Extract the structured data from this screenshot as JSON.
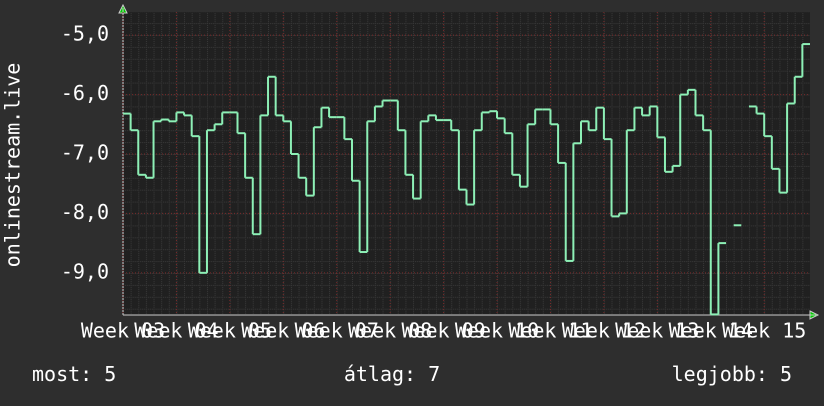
{
  "chart_data": {
    "type": "line",
    "y_label": "onlinestream.live",
    "color": "#8df0b6",
    "x": [
      0,
      1,
      2,
      3,
      4,
      5,
      6,
      7,
      8,
      9,
      10,
      11,
      12,
      13,
      14,
      15,
      16,
      17,
      18,
      19,
      20,
      21,
      22,
      23,
      24,
      25,
      26,
      27,
      28,
      29,
      30,
      31,
      32,
      33,
      34,
      35,
      36,
      37,
      38,
      39,
      40,
      41,
      42,
      43,
      44,
      45,
      46,
      47,
      48,
      49,
      50,
      51,
      52,
      53,
      54,
      55,
      56,
      57,
      58,
      59,
      60,
      61,
      62,
      63,
      64,
      65,
      66,
      67,
      68,
      69,
      70,
      71,
      72,
      73,
      74,
      75,
      76,
      77,
      78,
      79,
      80,
      81,
      82,
      83,
      84,
      85,
      86,
      87,
      88,
      89
    ],
    "values": [
      -6.32,
      -6.6,
      -7.35,
      -7.4,
      -6.45,
      -6.42,
      -6.45,
      -6.3,
      -6.35,
      -6.7,
      -9.0,
      -6.6,
      -6.5,
      -6.3,
      -6.3,
      -6.65,
      -7.4,
      -8.35,
      -6.35,
      -5.7,
      -6.35,
      -6.45,
      -7.0,
      -7.4,
      -7.7,
      -6.55,
      -6.22,
      -6.38,
      -6.38,
      -6.75,
      -7.45,
      -8.65,
      -6.45,
      -6.2,
      -6.1,
      -6.1,
      -6.6,
      -7.35,
      -7.75,
      -6.45,
      -6.35,
      -6.43,
      -6.43,
      -6.6,
      -7.6,
      -7.85,
      -6.6,
      -6.3,
      -6.28,
      -6.4,
      -6.65,
      -7.35,
      -7.55,
      -6.5,
      -6.25,
      -6.25,
      -6.5,
      -7.15,
      -8.8,
      -6.82,
      -6.45,
      -6.6,
      -6.22,
      -6.75,
      -8.05,
      -8.0,
      -6.6,
      -6.22,
      -6.35,
      -6.2,
      -6.72,
      -7.3,
      -7.2,
      -6.0,
      -5.92,
      -6.35,
      -6.6,
      -9.7,
      -8.5,
      null,
      -8.2,
      null,
      -6.2,
      -6.32,
      -6.7,
      -7.25,
      -7.65,
      -6.15,
      -5.7,
      -5.15
    ],
    "xlim": [
      0,
      90
    ],
    "xticks": [
      {
        "value": 0,
        "label": "Week 03"
      },
      {
        "value": 7,
        "label": "Week 04"
      },
      {
        "value": 14,
        "label": "Week 05"
      },
      {
        "value": 21,
        "label": "Week 06"
      },
      {
        "value": 28,
        "label": "Week 07"
      },
      {
        "value": 35,
        "label": "Week 08"
      },
      {
        "value": 42,
        "label": "Week 09"
      },
      {
        "value": 49,
        "label": "Week 10"
      },
      {
        "value": 56,
        "label": "Week 11"
      },
      {
        "value": 63,
        "label": "Week 12"
      },
      {
        "value": 70,
        "label": "Week 13"
      },
      {
        "value": 77,
        "label": "Week 14"
      },
      {
        "value": 84,
        "label": "Week 15"
      }
    ],
    "ylim": [
      -9.71,
      -4.61
    ],
    "yticks": [
      {
        "value": -9,
        "label": "-9,0"
      },
      {
        "value": -8,
        "label": "-8,0"
      },
      {
        "value": -7,
        "label": "-7,0"
      },
      {
        "value": -6,
        "label": "-6,0"
      },
      {
        "value": -5,
        "label": "-5,0"
      }
    ],
    "grid": true,
    "stats": [
      {
        "label": "most:",
        "value": 5
      },
      {
        "label": "átlag:",
        "value": 7
      },
      {
        "label": "legjobb:",
        "value": 5
      }
    ]
  }
}
